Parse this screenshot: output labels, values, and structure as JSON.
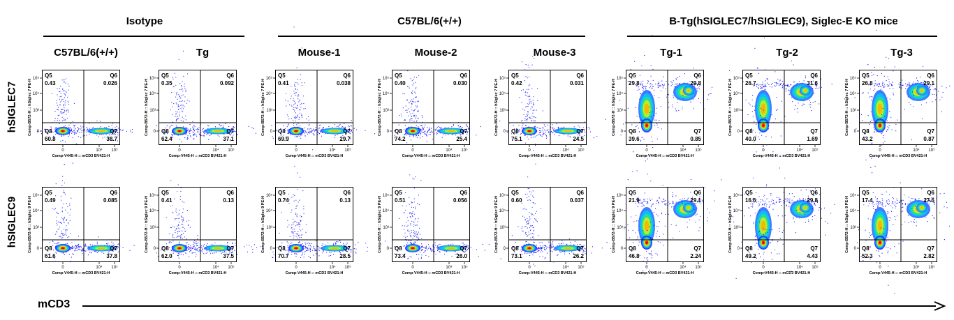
{
  "groups": [
    {
      "title": "Isotype"
    },
    {
      "title": "C57BL/6(+/+)"
    },
    {
      "title": "B-Tg(hSIGLEC7/hSIGLEC9), Siglec-E KO mice"
    }
  ],
  "columns": [
    {
      "title": "C57BL/6(+/+)"
    },
    {
      "title": "Tg"
    },
    {
      "title": "Mouse-1"
    },
    {
      "title": "Mouse-2"
    },
    {
      "title": "Mouse-3"
    },
    {
      "title": "Tg-1"
    },
    {
      "title": "Tg-2"
    },
    {
      "title": "Tg-3"
    }
  ],
  "rows": [
    {
      "label": "hSIGLEC7",
      "y_axis": "Comp-B572-H :: hSiglec 7 PE-H"
    },
    {
      "label": "hSIGLEC9",
      "y_axis": "Comp-B572-H :: hSiglec 9 PE-H"
    }
  ],
  "x_axis_label": "Comp-V445-H :: mCD3 BV421-H",
  "bottom_axis": "mCD3",
  "quadrant_names": {
    "q5": "Q5",
    "q6": "Q6",
    "q7": "Q7",
    "q8": "Q8"
  },
  "tick_labels": {
    "x": [
      "0",
      "10⁴",
      "10⁵"
    ],
    "y": [
      "10⁵",
      "10⁴",
      "10³",
      "0"
    ]
  },
  "chart_data": [
    {
      "type": "scatter",
      "row": "hSIGLEC7",
      "column": "C57BL/6(+/+)",
      "q5": "0.43",
      "q6": "0.026",
      "q7": "38.7",
      "q8": "60.8"
    },
    {
      "type": "scatter",
      "row": "hSIGLEC7",
      "column": "Tg",
      "q5": "0.35",
      "q6": "0.092",
      "q7": "37.1",
      "q8": "62.4"
    },
    {
      "type": "scatter",
      "row": "hSIGLEC7",
      "column": "Mouse-1",
      "q5": "0.41",
      "q6": "0.038",
      "q7": "29.7",
      "q8": "69.9"
    },
    {
      "type": "scatter",
      "row": "hSIGLEC7",
      "column": "Mouse-2",
      "q5": "0.40",
      "q6": "0.030",
      "q7": "25.4",
      "q8": "74.2"
    },
    {
      "type": "scatter",
      "row": "hSIGLEC7",
      "column": "Mouse-3",
      "q5": "0.42",
      "q6": "0.031",
      "q7": "24.5",
      "q8": "75.1"
    },
    {
      "type": "scatter",
      "row": "hSIGLEC7",
      "column": "Tg-1",
      "q5": "29.8",
      "q6": "29.8",
      "q7": "0.85",
      "q8": "39.6"
    },
    {
      "type": "scatter",
      "row": "hSIGLEC7",
      "column": "Tg-2",
      "q5": "26.7",
      "q6": "31.6",
      "q7": "1.69",
      "q8": "40.0"
    },
    {
      "type": "scatter",
      "row": "hSIGLEC7",
      "column": "Tg-3",
      "q5": "26.8",
      "q6": "29.1",
      "q7": "0.87",
      "q8": "43.2"
    },
    {
      "type": "scatter",
      "row": "hSIGLEC9",
      "column": "C57BL/6(+/+)",
      "q5": "0.49",
      "q6": "0.085",
      "q7": "37.8",
      "q8": "61.6"
    },
    {
      "type": "scatter",
      "row": "hSIGLEC9",
      "column": "Tg",
      "q5": "0.41",
      "q6": "0.13",
      "q7": "37.5",
      "q8": "62.0"
    },
    {
      "type": "scatter",
      "row": "hSIGLEC9",
      "column": "Mouse-1",
      "q5": "0.74",
      "q6": "0.13",
      "q7": "28.5",
      "q8": "70.7"
    },
    {
      "type": "scatter",
      "row": "hSIGLEC9",
      "column": "Mouse-2",
      "q5": "0.51",
      "q6": "0.056",
      "q7": "26.0",
      "q8": "73.4"
    },
    {
      "type": "scatter",
      "row": "hSIGLEC9",
      "column": "Mouse-3",
      "q5": "0.60",
      "q6": "0.037",
      "q7": "26.2",
      "q8": "73.1"
    },
    {
      "type": "scatter",
      "row": "hSIGLEC9",
      "column": "Tg-1",
      "q5": "21.9",
      "q6": "29.1",
      "q7": "2.24",
      "q8": "46.8"
    },
    {
      "type": "scatter",
      "row": "hSIGLEC9",
      "column": "Tg-2",
      "q5": "16.6",
      "q6": "29.8",
      "q7": "4.43",
      "q8": "49.2"
    },
    {
      "type": "scatter",
      "row": "hSIGLEC9",
      "column": "Tg-3",
      "q5": "17.4",
      "q6": "27.6",
      "q7": "2.82",
      "q8": "52.3"
    }
  ]
}
